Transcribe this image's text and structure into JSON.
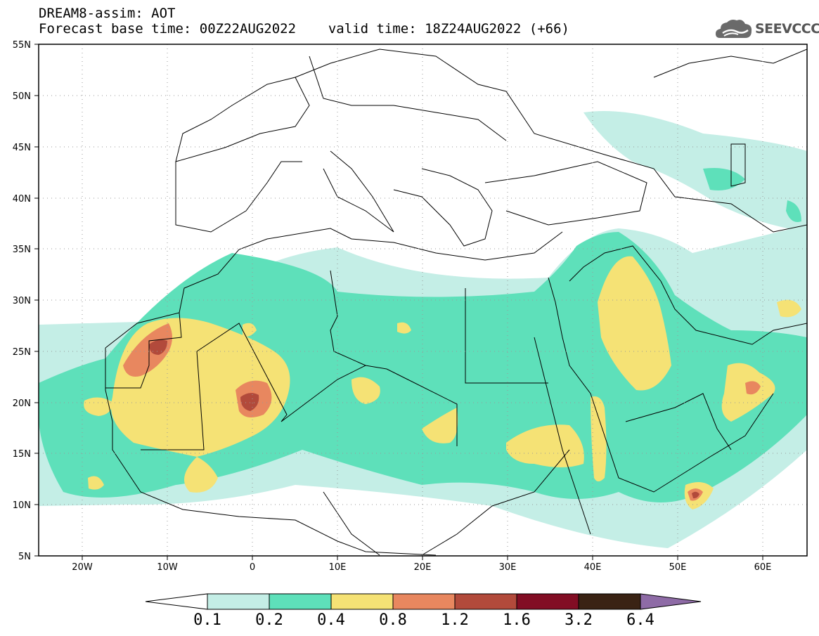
{
  "title": {
    "line1": "DREAM8-assim: AOT",
    "base_time_label": "Forecast base time: 00Z22AUG2022",
    "valid_time_label": "valid time: 18Z24AUG2022 (+66)"
  },
  "logo": {
    "text": "SEEVCCC",
    "icon": "cloud-icon"
  },
  "map": {
    "lon_range": [
      -25,
      65
    ],
    "lat_range": [
      5,
      55
    ],
    "lon_ticks": [
      "20W",
      "10W",
      "0",
      "10E",
      "20E",
      "30E",
      "40E",
      "50E",
      "60E"
    ],
    "lat_ticks": [
      "55N",
      "50N",
      "45N",
      "40N",
      "35N",
      "30N",
      "25N",
      "20N",
      "15N",
      "10N",
      "5N"
    ],
    "grid": "dotted"
  },
  "colorbar": {
    "labels": [
      "0.1",
      "0.2",
      "0.4",
      "0.8",
      "1.2",
      "1.6",
      "3.2",
      "6.4"
    ],
    "colors": [
      "#c4eee6",
      "#5ee0ba",
      "#f5e275",
      "#e8875f",
      "#b24a3b",
      "#820d24",
      "#3a2314",
      "#8e6ba6"
    ]
  }
}
